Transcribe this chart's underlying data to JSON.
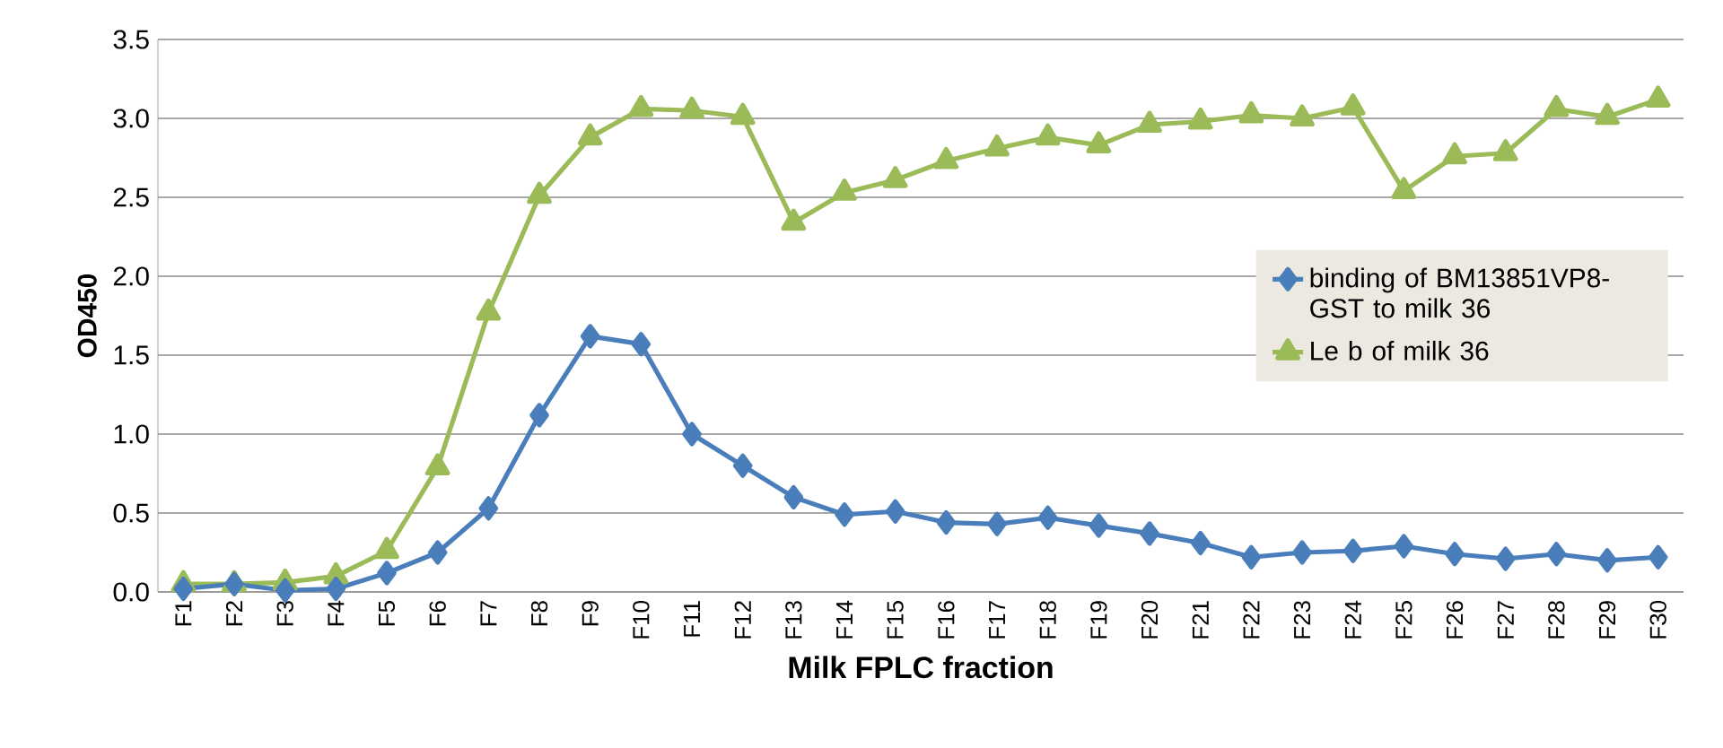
{
  "chart_data": {
    "type": "line",
    "xlabel": "Milk FPLC fraction",
    "ylabel": "OD450",
    "categories": [
      "F1",
      "F2",
      "F3",
      "F4",
      "F5",
      "F6",
      "F7",
      "F8",
      "F9",
      "F10",
      "F11",
      "F12",
      "F13",
      "F14",
      "F15",
      "F16",
      "F17",
      "F18",
      "F19",
      "F20",
      "F21",
      "F22",
      "F23",
      "F24",
      "F25",
      "F26",
      "F27",
      "F28",
      "F29",
      "F30"
    ],
    "series": [
      {
        "name": "binding of BM13851VP8-GST to milk 36",
        "color": "#4a7ebb",
        "marker": "diamond",
        "values": [
          0.02,
          0.05,
          0.01,
          0.02,
          0.12,
          0.25,
          0.53,
          1.12,
          1.62,
          1.57,
          1.0,
          0.8,
          0.6,
          0.49,
          0.51,
          0.44,
          0.43,
          0.47,
          0.42,
          0.37,
          0.31,
          0.22,
          0.25,
          0.26,
          0.29,
          0.24,
          0.21,
          0.24,
          0.2,
          0.22
        ]
      },
      {
        "name": "Le b of milk 36",
        "color": "#9bbb59",
        "marker": "triangle",
        "values": [
          0.05,
          0.05,
          0.06,
          0.1,
          0.26,
          0.79,
          1.77,
          2.51,
          2.88,
          3.06,
          3.05,
          3.01,
          2.34,
          2.53,
          2.61,
          2.73,
          2.81,
          2.88,
          2.83,
          2.96,
          2.98,
          3.02,
          3.0,
          3.07,
          2.54,
          2.76,
          2.78,
          3.06,
          3.01,
          3.12
        ]
      }
    ],
    "ylim": [
      0,
      3.5
    ],
    "yticks": [
      {
        "value": 0,
        "label": "0.0"
      },
      {
        "value": 0.5,
        "label": "0.5"
      },
      {
        "value": 1,
        "label": "1.0"
      },
      {
        "value": 1.5,
        "label": "1.5"
      },
      {
        "value": 2,
        "label": "2.0"
      },
      {
        "value": 2.5,
        "label": "2.5"
      },
      {
        "value": 3,
        "label": "3.0"
      },
      {
        "value": 3.5,
        "label": "3.5"
      }
    ],
    "grid": "y",
    "legend": "right",
    "line_style": "solid"
  }
}
